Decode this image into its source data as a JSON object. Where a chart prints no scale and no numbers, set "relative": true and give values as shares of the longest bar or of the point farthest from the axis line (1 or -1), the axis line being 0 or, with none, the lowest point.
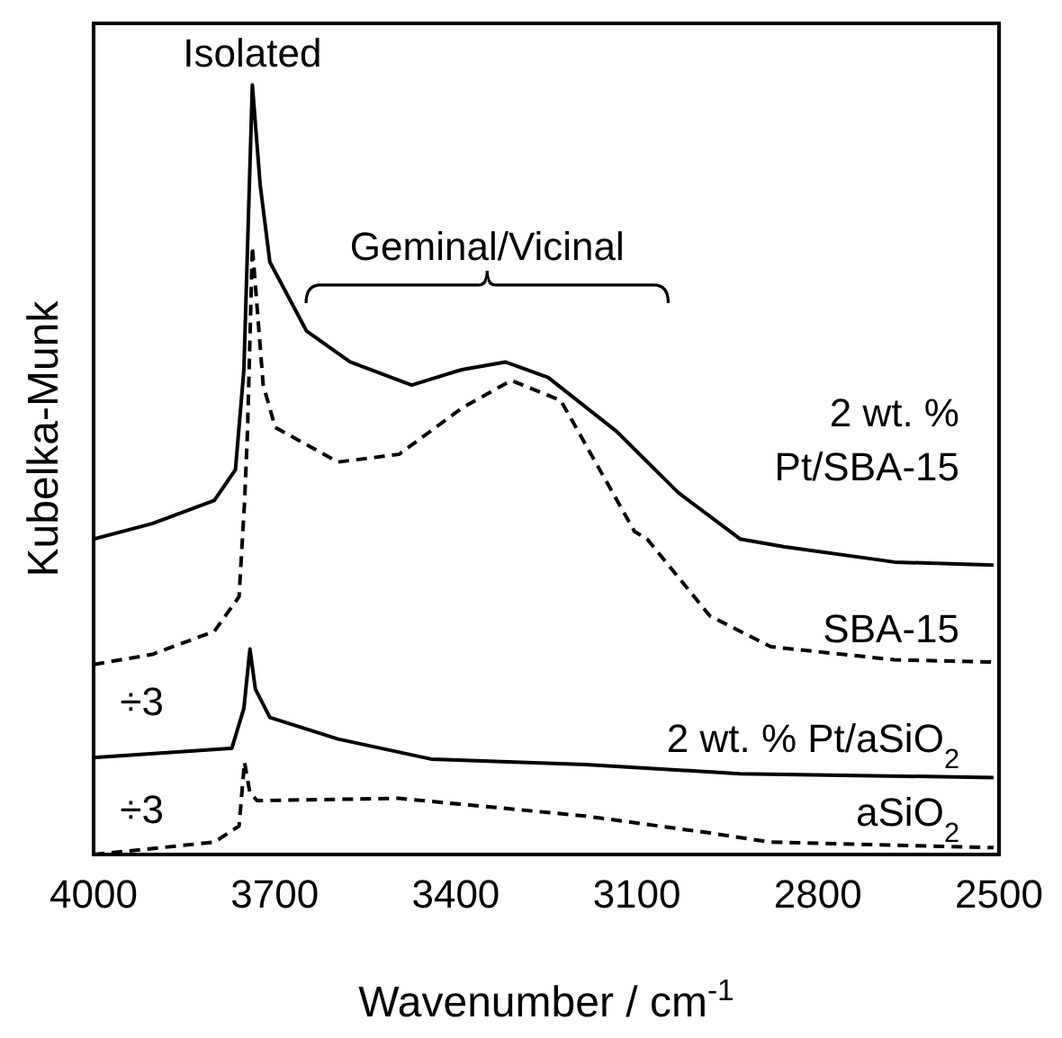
{
  "chart_data": {
    "type": "line",
    "relative": true,
    "xlabel": "Wavenumber / cm$^{-1}$",
    "ylabel": "Kubelka-Munk",
    "xlim": [
      4000,
      2500
    ],
    "xticks": [
      4000,
      3700,
      3400,
      3100,
      2800,
      2500
    ],
    "marker": "none",
    "series": [
      {
        "name": "2 wt. % Pt/SBA-15",
        "color": "#000000",
        "line_style": "solid",
        "x": [
          4000,
          3903,
          3800,
          3765,
          3751,
          3737,
          3724,
          3708,
          3647,
          3575,
          3473,
          3390,
          3318,
          3247,
          3134,
          3031,
          2929,
          2857,
          2673,
          2509
        ],
        "values": [
          0.41,
          0.43,
          0.46,
          0.5,
          0.63,
          1.0,
          0.87,
          0.77,
          0.68,
          0.64,
          0.61,
          0.63,
          0.64,
          0.62,
          0.55,
          0.47,
          0.41,
          0.4,
          0.38,
          0.376
        ]
      },
      {
        "name": "SBA-15",
        "color": "#000000",
        "line_style": "dashed",
        "x": [
          4000,
          3903,
          3800,
          3759,
          3750,
          3745,
          3737,
          3719,
          3699,
          3595,
          3494,
          3390,
          3308,
          3226,
          3104,
          3083,
          2979,
          2878,
          2673,
          2509
        ],
        "values": [
          0.247,
          0.26,
          0.29,
          0.335,
          0.457,
          0.55,
          0.79,
          0.61,
          0.555,
          0.51,
          0.52,
          0.58,
          0.616,
          0.59,
          0.42,
          0.41,
          0.31,
          0.27,
          0.253,
          0.25
        ]
      },
      {
        "name": "2 wt. % Pt/aSiO$_{2}$",
        "color": "#000000",
        "line_style": "solid",
        "x": [
          4000,
          3771,
          3751,
          3741,
          3732,
          3708,
          3595,
          3441,
          3185,
          2929,
          2509
        ],
        "values": [
          0.126,
          0.138,
          0.19,
          0.267,
          0.215,
          0.178,
          0.15,
          0.124,
          0.117,
          0.105,
          0.1
        ]
      },
      {
        "name": "aSiO$_{2}$",
        "color": "#000000",
        "line_style": "dashed",
        "x": [
          4000,
          3800,
          3759,
          3750,
          3741,
          3729,
          3494,
          3185,
          2979,
          2878,
          2509
        ],
        "values": [
          0.0,
          0.016,
          0.037,
          0.12,
          0.08,
          0.07,
          0.073,
          0.05,
          0.028,
          0.016,
          0.009
        ]
      }
    ],
    "annotations": [
      {
        "text": "Isolated",
        "x": 3737,
        "y": 1.0
      },
      "Geminal/Vicinal",
      "÷3",
      "÷3"
    ]
  }
}
